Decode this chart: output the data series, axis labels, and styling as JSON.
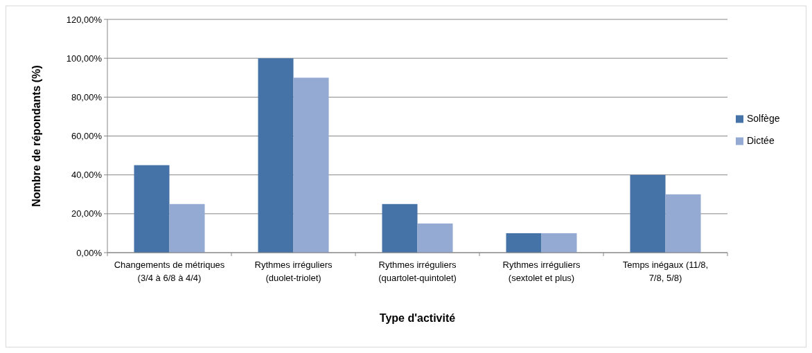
{
  "chart_data": {
    "type": "bar",
    "xlabel": "Type d'activité",
    "ylabel": "Nombre de répondants (%)",
    "categories": [
      "Changements de métriques (3/4 à 6/8 à 4/4)",
      "Rythmes irréguliers (duolet-triolet)",
      "Rythmes irréguliers (quartolet-quintolet)",
      "Rythmes irréguliers (sextolet et plus)",
      "Temps inégaux (11/8, 7/8, 5/8)"
    ],
    "series": [
      {
        "name": "Solfège",
        "color": "#4572a7",
        "values": [
          45,
          100,
          25,
          10,
          40
        ]
      },
      {
        "name": "Dictée",
        "color": "#95aad2",
        "values": [
          25,
          90,
          15,
          10,
          30
        ]
      }
    ],
    "ylim": [
      0,
      120
    ],
    "yticks": [
      {
        "value": 0,
        "label": "0,00%"
      },
      {
        "value": 20,
        "label": "20,00%"
      },
      {
        "value": 40,
        "label": "40,00%"
      },
      {
        "value": 60,
        "label": "60,00%"
      },
      {
        "value": 80,
        "label": "80,00%"
      },
      {
        "value": 100,
        "label": "100,00%"
      },
      {
        "value": 120,
        "label": "120,00%"
      }
    ],
    "grid": "y",
    "legend": "right"
  }
}
